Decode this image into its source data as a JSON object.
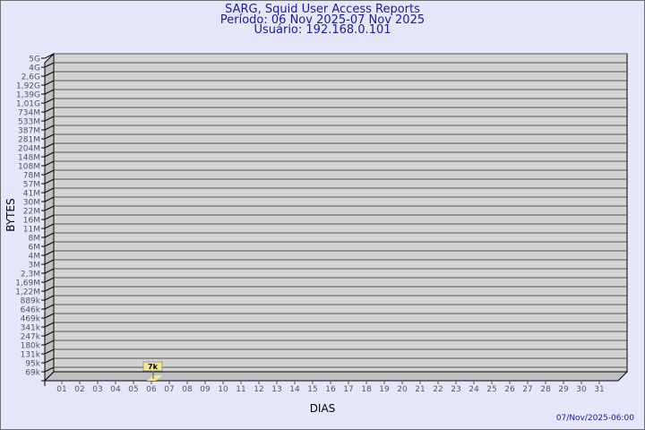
{
  "chart_data": {
    "type": "bar",
    "title": "SARG, Squid User Access Reports",
    "subtitle_period": "Período: 06 Nov 2025-07 Nov 2025",
    "subtitle_user": "Usuário: 192.168.0.101",
    "xlabel": "DIAS",
    "ylabel": "BYTES",
    "y_scale": "log",
    "y_tick_labels": [
      "5G",
      "4G",
      "2,6G",
      "1,92G",
      "1,39G",
      "1,01G",
      "734M",
      "533M",
      "387M",
      "281M",
      "204M",
      "148M",
      "108M",
      "78M",
      "57M",
      "41M",
      "30M",
      "22M",
      "16M",
      "11M",
      "8M",
      "6M",
      "4M",
      "3M",
      "2,3M",
      "1,69M",
      "1,22M",
      "889k",
      "646k",
      "469k",
      "341k",
      "247k",
      "180k",
      "131k",
      "95k",
      "69k"
    ],
    "categories": [
      "01",
      "02",
      "03",
      "04",
      "05",
      "06",
      "07",
      "08",
      "09",
      "10",
      "11",
      "12",
      "13",
      "14",
      "15",
      "16",
      "17",
      "18",
      "19",
      "20",
      "21",
      "22",
      "23",
      "24",
      "25",
      "26",
      "27",
      "28",
      "29",
      "30",
      "31"
    ],
    "values": [
      null,
      null,
      null,
      null,
      null,
      7000,
      null,
      null,
      null,
      null,
      null,
      null,
      null,
      null,
      null,
      null,
      null,
      null,
      null,
      null,
      null,
      null,
      null,
      null,
      null,
      null,
      null,
      null,
      null,
      null,
      null
    ],
    "data_labels": {
      "06": "7k"
    },
    "grid": true,
    "colors": {
      "background": "#e6e6fa",
      "plot_wall": "#d3d3d3",
      "side_wall": "#c0c0c0",
      "bar": "#f5e68c",
      "title": "#1a1a9c",
      "label_box": "#f5e68c"
    }
  },
  "footer": {
    "timestamp": "07/Nov/2025-06:00"
  }
}
